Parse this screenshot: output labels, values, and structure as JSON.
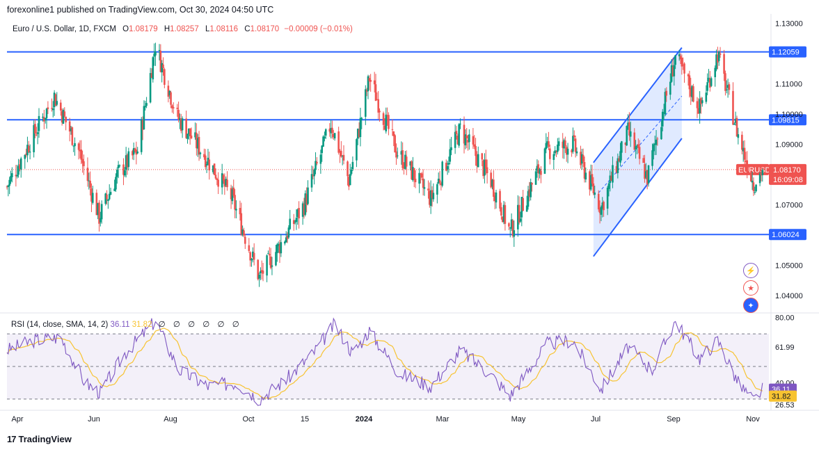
{
  "header": {
    "publish_line": "forexonline1 published on TradingView.com, Oct 30, 2024 04:50 UTC"
  },
  "legend": {
    "symbol": "Euro / U.S. Dollar, 1D, FXCM",
    "o_label": "O",
    "o_value": "1.08179",
    "h_label": "H",
    "h_value": "1.08257",
    "l_label": "L",
    "l_value": "1.08116",
    "c_label": "C",
    "c_value": "1.08170",
    "change": "−0.00009 (−0.01%)"
  },
  "rsi_legend": {
    "title": "RSI (14, close, SMA, 14, 2)",
    "rsi_value": "36.11",
    "sma_value": "31.82",
    "extra": "∅ ∅ ∅ ∅ ∅ ∅"
  },
  "footer": {
    "brand": "TradingView",
    "logo": "17"
  },
  "colors": {
    "up": "#089981",
    "down": "#ef5350",
    "line": "#2962ff",
    "rsi": "#7e57c2",
    "rsi_ma": "#f7c331",
    "channel_fill": "#c7d8ff"
  },
  "icons": [
    "lightning-icon",
    "us-flag-icon",
    "eu-flag-icon"
  ],
  "chart_data": [
    {
      "type": "candlestick",
      "title": "Euro / U.S. Dollar, 1D, FXCM",
      "ylim": [
        1.035,
        1.132
      ],
      "y_ticks": [
        "1.13000",
        "1.11000",
        "1.10000",
        "1.09000",
        "1.07000",
        "1.05000",
        "1.04000"
      ],
      "x_ticks": [
        "Apr",
        "Jun",
        "Aug",
        "Oct",
        "15",
        "2024",
        "Mar",
        "May",
        "Jul",
        "Sep",
        "Nov"
      ],
      "horizontal_lines": [
        {
          "value": 1.12059,
          "label": "1.12059"
        },
        {
          "value": 1.09815,
          "label": "1.09815"
        },
        {
          "value": 1.06024,
          "label": "1.06024"
        }
      ],
      "current_price": {
        "value": 1.0817,
        "label": "1.08170",
        "symbol_tag": "EURUSD",
        "countdown": "16:09:08"
      },
      "price_path": [
        [
          "2023-03-20",
          1.076
        ],
        [
          "2023-04-06",
          1.09
        ],
        [
          "2023-04-26",
          1.106
        ],
        [
          "2023-05-15",
          1.088
        ],
        [
          "2023-05-31",
          1.066
        ],
        [
          "2023-06-14",
          1.08
        ],
        [
          "2023-06-30",
          1.088
        ],
        [
          "2023-07-14",
          1.123
        ],
        [
          "2023-07-31",
          1.099
        ],
        [
          "2023-08-22",
          1.086
        ],
        [
          "2023-09-12",
          1.072
        ],
        [
          "2023-10-03",
          1.046
        ],
        [
          "2023-10-24",
          1.06
        ],
        [
          "2023-11-07",
          1.07
        ],
        [
          "2023-11-28",
          1.097
        ],
        [
          "2023-12-12",
          1.078
        ],
        [
          "2023-12-28",
          1.112
        ],
        [
          "2024-01-18",
          1.088
        ],
        [
          "2024-02-14",
          1.072
        ],
        [
          "2024-03-08",
          1.095
        ],
        [
          "2024-04-01",
          1.078
        ],
        [
          "2024-04-16",
          1.061
        ],
        [
          "2024-05-15",
          1.088
        ],
        [
          "2024-06-04",
          1.09
        ],
        [
          "2024-06-26",
          1.069
        ],
        [
          "2024-07-17",
          1.094
        ],
        [
          "2024-08-01",
          1.079
        ],
        [
          "2024-08-23",
          1.119
        ],
        [
          "2024-09-11",
          1.102
        ],
        [
          "2024-09-25",
          1.12
        ],
        [
          "2024-10-11",
          1.093
        ],
        [
          "2024-10-23",
          1.077
        ],
        [
          "2024-10-30",
          1.0817
        ]
      ],
      "channel": {
        "upper": [
          [
            "2024-06-20",
            1.084
          ],
          [
            "2024-08-28",
            1.122
          ]
        ],
        "lower": [
          [
            "2024-06-20",
            1.053
          ],
          [
            "2024-08-28",
            1.092
          ]
        ]
      },
      "channel_mid": [
        [
          "2024-06-24",
          1.074
        ],
        [
          "2024-08-28",
          1.106
        ]
      ]
    },
    {
      "type": "line",
      "title": "RSI (14, close, SMA, 14, 2)",
      "ylim": [
        24,
        82
      ],
      "y_ticks": [
        "80.00",
        "61.99",
        "40.00",
        "26.53"
      ],
      "guide_levels": [
        70,
        50,
        30
      ],
      "last_rsi": {
        "value": 36.11,
        "label": "36.11"
      },
      "last_sma": {
        "value": 31.82,
        "label": "31.82"
      },
      "rsi_path": [
        [
          "2023-03-20",
          60
        ],
        [
          "2023-04-10",
          66
        ],
        [
          "2023-05-01",
          68
        ],
        [
          "2023-05-20",
          40
        ],
        [
          "2023-06-01",
          34
        ],
        [
          "2023-06-20",
          58
        ],
        [
          "2023-07-14",
          78
        ],
        [
          "2023-08-01",
          48
        ],
        [
          "2023-08-24",
          38
        ],
        [
          "2023-09-15",
          40
        ],
        [
          "2023-10-03",
          30
        ],
        [
          "2023-10-24",
          42
        ],
        [
          "2023-11-14",
          58
        ],
        [
          "2023-12-01",
          76
        ],
        [
          "2023-12-15",
          58
        ],
        [
          "2023-12-28",
          72
        ],
        [
          "2024-01-20",
          46
        ],
        [
          "2024-02-14",
          38
        ],
        [
          "2024-03-08",
          60
        ],
        [
          "2024-04-01",
          45
        ],
        [
          "2024-04-16",
          32
        ],
        [
          "2024-05-15",
          64
        ],
        [
          "2024-06-04",
          66
        ],
        [
          "2024-06-26",
          36
        ],
        [
          "2024-07-17",
          62
        ],
        [
          "2024-08-05",
          48
        ],
        [
          "2024-08-23",
          78
        ],
        [
          "2024-09-11",
          55
        ],
        [
          "2024-09-25",
          66
        ],
        [
          "2024-10-11",
          40
        ],
        [
          "2024-10-23",
          29
        ],
        [
          "2024-10-30",
          36.11
        ]
      ]
    }
  ]
}
